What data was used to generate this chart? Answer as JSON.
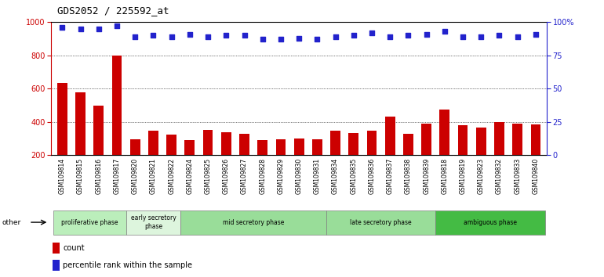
{
  "title": "GDS2052 / 225592_at",
  "samples": [
    "GSM109814",
    "GSM109815",
    "GSM109816",
    "GSM109817",
    "GSM109820",
    "GSM109821",
    "GSM109822",
    "GSM109824",
    "GSM109825",
    "GSM109826",
    "GSM109827",
    "GSM109828",
    "GSM109829",
    "GSM109830",
    "GSM109831",
    "GSM109834",
    "GSM109835",
    "GSM109836",
    "GSM109837",
    "GSM109838",
    "GSM109839",
    "GSM109818",
    "GSM109819",
    "GSM109823",
    "GSM109832",
    "GSM109833",
    "GSM109840"
  ],
  "counts": [
    635,
    578,
    500,
    800,
    295,
    348,
    325,
    290,
    350,
    340,
    330,
    290,
    295,
    300,
    295,
    345,
    335,
    345,
    430,
    330,
    390,
    475,
    380,
    365,
    400,
    390,
    385
  ],
  "percentile": [
    96,
    95,
    95,
    97,
    89,
    90,
    89,
    91,
    89,
    90,
    90,
    87,
    87,
    88,
    87,
    89,
    90,
    92,
    89,
    90,
    91,
    93,
    89,
    89,
    90,
    89,
    91
  ],
  "phases": [
    {
      "name": "proliferative phase",
      "start": 0,
      "end": 4,
      "color": "#bbeebb"
    },
    {
      "name": "early secretory\nphase",
      "start": 4,
      "end": 7,
      "color": "#ddf5dd"
    },
    {
      "name": "mid secretory phase",
      "start": 7,
      "end": 15,
      "color": "#99dd99"
    },
    {
      "name": "late secretory phase",
      "start": 15,
      "end": 21,
      "color": "#99dd99"
    },
    {
      "name": "ambiguous phase",
      "start": 21,
      "end": 27,
      "color": "#44bb44"
    }
  ],
  "bar_color": "#cc0000",
  "dot_color": "#2222cc",
  "ylim_left": [
    200,
    1000
  ],
  "ylim_right": [
    0,
    100
  ],
  "yticks_left": [
    200,
    400,
    600,
    800,
    1000
  ],
  "yticks_right": [
    0,
    25,
    50,
    75,
    100
  ],
  "tick_bg_color": "#d4d4d4",
  "bg_color": "#ffffff",
  "legend_count": "count",
  "legend_percentile": "percentile rank within the sample"
}
